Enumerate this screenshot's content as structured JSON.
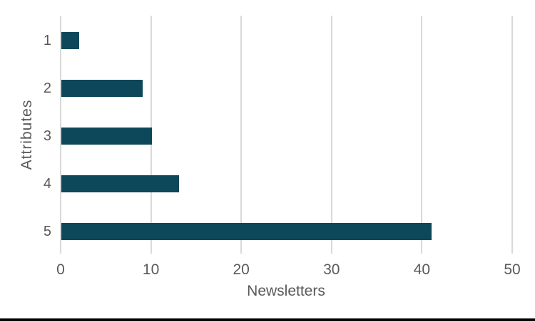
{
  "chart_data": {
    "type": "bar",
    "orientation": "horizontal",
    "title": "",
    "categories": [
      "1",
      "2",
      "3",
      "4",
      "5"
    ],
    "values": [
      2,
      9,
      10,
      13,
      41
    ],
    "xlabel": "Newsletters",
    "ylabel": "Attributes",
    "xlim": [
      0,
      50
    ],
    "x_ticks": [
      0,
      10,
      20,
      30,
      40,
      50
    ],
    "grid": "vertical-gridlines-on",
    "legend": "none"
  },
  "colors": {
    "bar": "#0d475a",
    "gridline": "#d9d9d9",
    "axis_text": "#595959",
    "bottom_rule": "#000000",
    "background": "#ffffff"
  }
}
